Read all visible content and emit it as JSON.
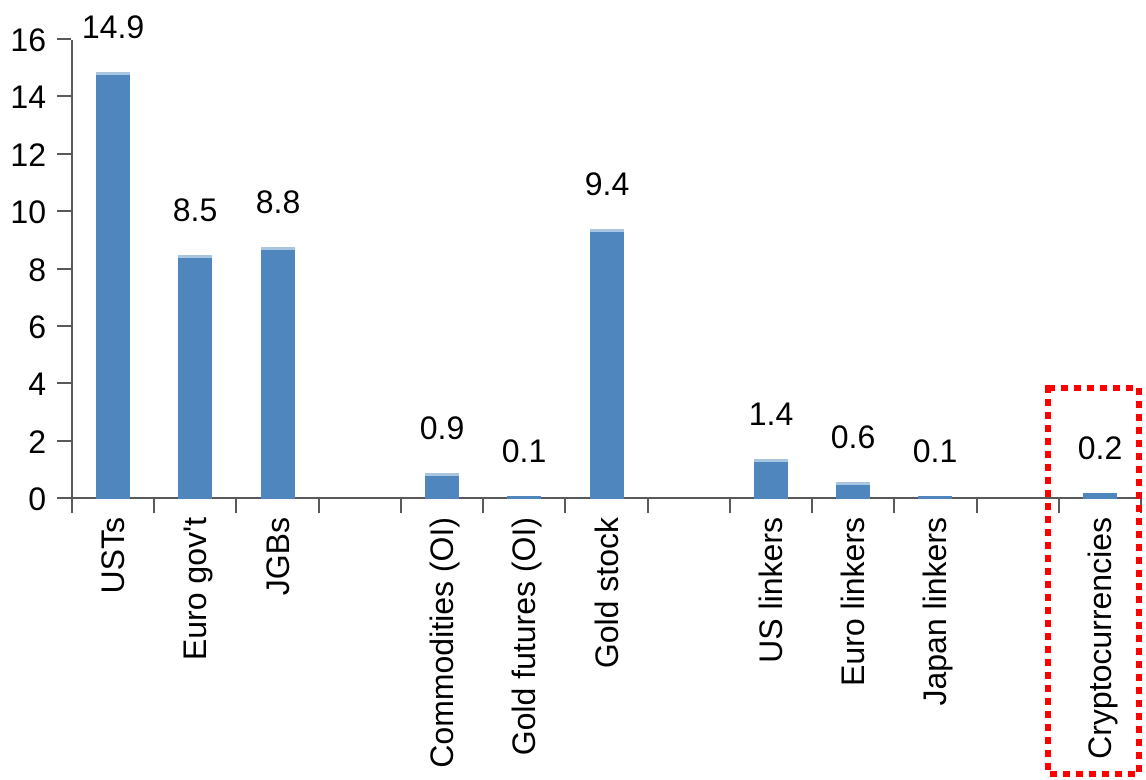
{
  "chart_data": {
    "type": "bar",
    "categories": [
      "USTs",
      "Euro gov't",
      "JGBs",
      "Commodities (OI)",
      "Gold futures (OI)",
      "Gold stock",
      "US linkers",
      "Euro linkers",
      "Japan linkers",
      "Cryptocurrencies"
    ],
    "values": [
      14.9,
      8.5,
      8.8,
      0.9,
      0.1,
      9.4,
      1.4,
      0.6,
      0.1,
      0.2
    ],
    "data_labels": [
      "14.9",
      "8.5",
      "8.8",
      "0.9",
      "0.1",
      "9.4",
      "1.4",
      "0.6",
      "0.1",
      "0.2"
    ],
    "group_slots": [
      0,
      1,
      2,
      4,
      5,
      6,
      8,
      9,
      10,
      12
    ],
    "total_slots": 13,
    "y_ticks": [
      "0",
      "2",
      "4",
      "6",
      "8",
      "10",
      "12",
      "14",
      "16"
    ],
    "y_tick_values": [
      0,
      2,
      4,
      6,
      8,
      10,
      12,
      14,
      16
    ],
    "ylim": [
      0,
      16
    ],
    "xlabel": "",
    "ylabel": "",
    "grid": false,
    "legend_position": "none",
    "x_labels_rotated_degrees": -90,
    "colors": {
      "bar": "#4e86bd",
      "bar_top_edge": "#a9c6e0",
      "axis": "#595959",
      "text": "#000000",
      "highlight_box": "#ff0000"
    },
    "highlight": {
      "category": "Cryptocurrencies",
      "shape": "red-dotted-rectangle"
    }
  }
}
